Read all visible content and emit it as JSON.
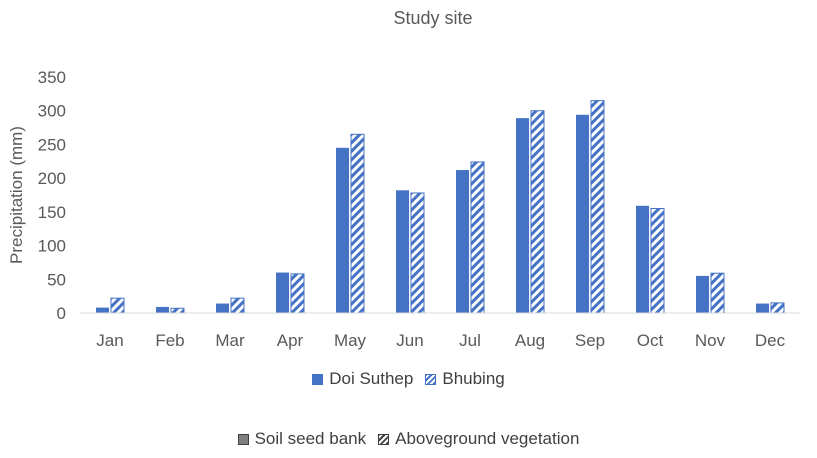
{
  "chart_data": {
    "type": "bar",
    "title": "Study site",
    "ylabel": "Precipitation (mm)",
    "xlabel": "",
    "ylim": [
      0,
      350
    ],
    "yticks": [
      0,
      50,
      100,
      150,
      200,
      250,
      300,
      350
    ],
    "grid": false,
    "legend_position": "bottom",
    "categories": [
      "Jan",
      "Feb",
      "Mar",
      "Apr",
      "May",
      "Jun",
      "Jul",
      "Aug",
      "Sep",
      "Oct",
      "Nov",
      "Dec"
    ],
    "series": [
      {
        "name": "Doi Suthep",
        "pattern": "solid",
        "color": "#4472c4",
        "values": [
          8,
          9,
          14,
          60,
          245,
          182,
          212,
          289,
          294,
          159,
          55,
          14
        ]
      },
      {
        "name": "Bhubing",
        "pattern": "diagonal-hatch",
        "color": "#4472c4",
        "values": [
          22,
          7,
          22,
          58,
          265,
          178,
          224,
          300,
          315,
          155,
          59,
          15
        ]
      }
    ]
  },
  "site_legend": {
    "items": [
      {
        "label": "Doi Suthep",
        "style": "solid",
        "color": "#4472c4"
      },
      {
        "label": "Bhubing",
        "style": "hatch",
        "color": "#4472c4"
      }
    ]
  },
  "type_legend": {
    "items": [
      {
        "label": "Soil seed bank",
        "style": "solid",
        "color": "#7f7f7f"
      },
      {
        "label": "Aboveground vegetation",
        "style": "hatch",
        "color": "#404040"
      }
    ]
  }
}
